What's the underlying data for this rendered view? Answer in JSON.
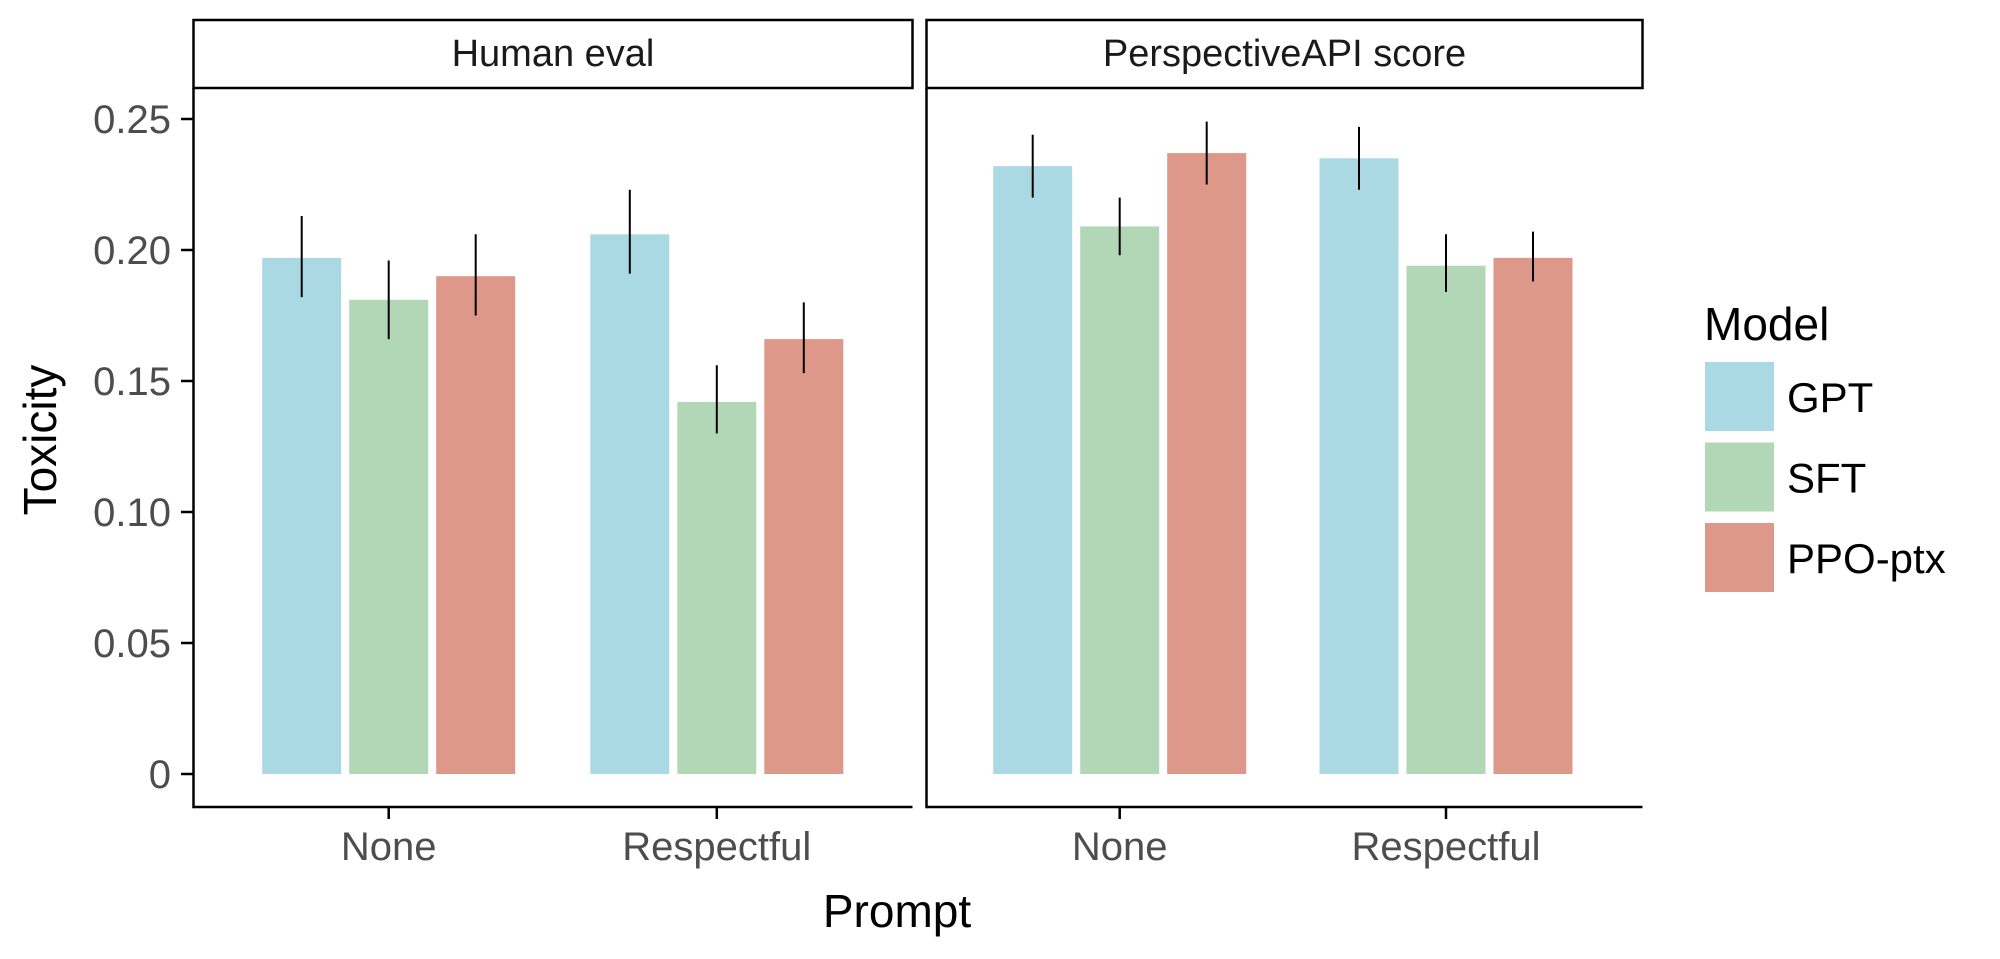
{
  "chart_data": {
    "type": "bar",
    "xlabel": "Prompt",
    "ylabel": "Toxicity",
    "ylim": [
      0,
      0.25
    ],
    "yticks": [
      "0",
      "0.05",
      "0.10",
      "0.15",
      "0.20",
      "0.25"
    ],
    "ytick_values": [
      0,
      0.05,
      0.1,
      0.15,
      0.2,
      0.25
    ],
    "categories": [
      "None",
      "Respectful"
    ],
    "legend": {
      "title": "Model",
      "position": "right"
    },
    "grid": false,
    "series_colors": {
      "GPT": "#abd9e3",
      "SFT": "#b2d7b7",
      "PPO-ptx": "#dd9889"
    },
    "facets": [
      {
        "title": "Human eval",
        "series": [
          {
            "name": "GPT",
            "values": [
              0.197,
              0.206
            ],
            "error_low": [
              0.182,
              0.191
            ],
            "error_high": [
              0.213,
              0.223
            ]
          },
          {
            "name": "SFT",
            "values": [
              0.181,
              0.142
            ],
            "error_low": [
              0.166,
              0.13
            ],
            "error_high": [
              0.196,
              0.156
            ]
          },
          {
            "name": "PPO-ptx",
            "values": [
              0.19,
              0.166
            ],
            "error_low": [
              0.175,
              0.153
            ],
            "error_high": [
              0.206,
              0.18
            ]
          }
        ]
      },
      {
        "title": "PerspectiveAPI score",
        "series": [
          {
            "name": "GPT",
            "values": [
              0.232,
              0.235
            ],
            "error_low": [
              0.22,
              0.223
            ],
            "error_high": [
              0.244,
              0.247
            ]
          },
          {
            "name": "SFT",
            "values": [
              0.209,
              0.194
            ],
            "error_low": [
              0.198,
              0.184
            ],
            "error_high": [
              0.22,
              0.206
            ]
          },
          {
            "name": "PPO-ptx",
            "values": [
              0.237,
              0.197
            ],
            "error_low": [
              0.225,
              0.188
            ],
            "error_high": [
              0.249,
              0.207
            ]
          }
        ]
      }
    ]
  }
}
